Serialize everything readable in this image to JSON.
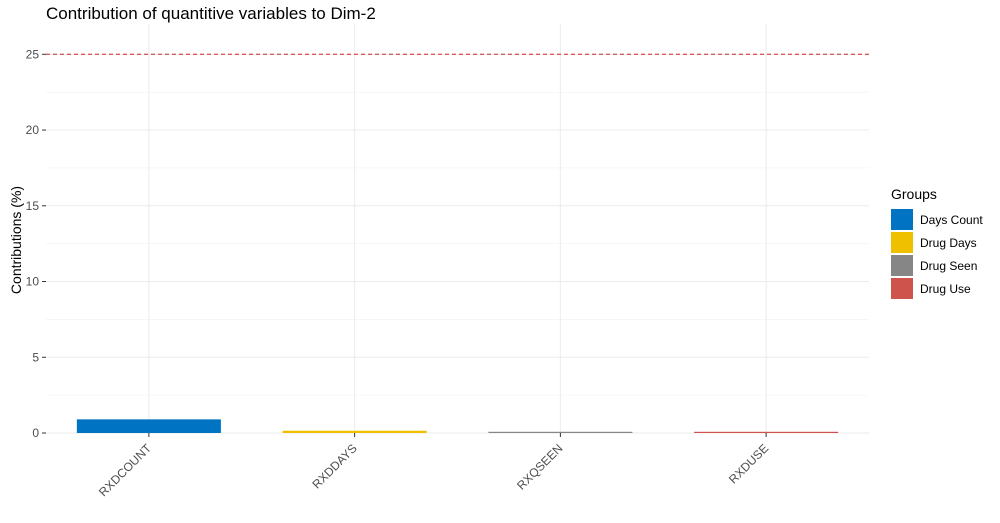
{
  "chart_data": {
    "type": "bar",
    "title": "Contribution of quantitive variables to Dim-2",
    "xlabel": "",
    "ylabel": "Contributions (%)",
    "categories": [
      "RXDCOUNT",
      "RXDDAYS",
      "RXQSEEN",
      "RXDUSE"
    ],
    "values": [
      0.9,
      0.15,
      0.02,
      0.02
    ],
    "groups": [
      "Days Count",
      "Drug Days",
      "Drug Seen",
      "Drug Use"
    ],
    "colors": [
      "#0073C2",
      "#EFC000",
      "#868686",
      "#CD534C"
    ],
    "ylim": [
      0,
      27
    ],
    "yticks": [
      0,
      5,
      10,
      15,
      20,
      25
    ],
    "reference_line": {
      "value": 25,
      "color": "#CD2626",
      "style": "dashed"
    },
    "grid": true,
    "legend": {
      "title": "Groups",
      "placement": "right",
      "items": [
        "Days Count",
        "Drug Days",
        "Drug Seen",
        "Drug Use"
      ]
    }
  }
}
